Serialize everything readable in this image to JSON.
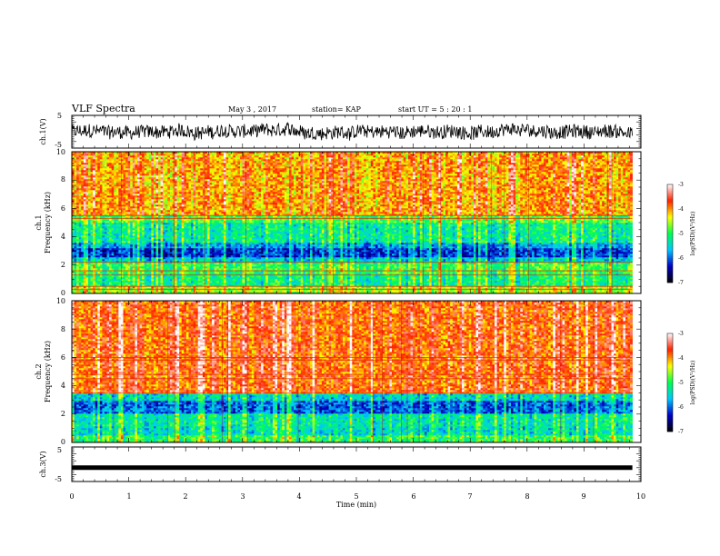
{
  "header": {
    "title": "VLF Spectra",
    "date": "May 3  , 2017",
    "station": "station= KAP",
    "start": "start  UT =   5  : 20 : 1"
  },
  "chart_data": [
    {
      "type": "line",
      "panel": "ch1-waveform",
      "ylabel": "ch.1(V)",
      "ylim": [
        -5,
        5
      ],
      "y_ticks": [
        "5",
        "-5"
      ],
      "xlim": [
        0,
        10
      ],
      "line_color": "#000000"
    },
    {
      "type": "heatmap",
      "panel": "ch1-spectrogram",
      "ylabel": "ch.1",
      "ylabel2": "Frequency (kHz)",
      "ylim": [
        0,
        10
      ],
      "y_ticks": [
        "0",
        "2",
        "4",
        "6",
        "8",
        "10"
      ],
      "xlim": [
        0,
        9.85
      ],
      "bands": [
        {
          "from": 0,
          "to": 0.5,
          "level": -4.6
        },
        {
          "from": 0.5,
          "to": 1.4,
          "level": -5.2
        },
        {
          "from": 1.4,
          "to": 2.2,
          "level": -5.0
        },
        {
          "from": 2.2,
          "to": 2.6,
          "level": -5.6
        },
        {
          "from": 2.6,
          "to": 3.2,
          "level": -6.2
        },
        {
          "from": 3.2,
          "to": 3.6,
          "level": -5.8
        },
        {
          "from": 3.6,
          "to": 5.0,
          "level": -5.3
        },
        {
          "from": 5.0,
          "to": 5.5,
          "level": -4.9
        },
        {
          "from": 5.5,
          "to": 10,
          "level": -4.1
        }
      ],
      "lines_khz": [
        0.3,
        0.5,
        1.3,
        1.6,
        2.2,
        5.3,
        5.5
      ],
      "colorbar": {
        "zlim": [
          -7,
          -3
        ],
        "z_ticks": [
          "-3",
          "-4",
          "-5",
          "-6",
          "-7"
        ],
        "label": "log(PSD)(V²/Hz)"
      }
    },
    {
      "type": "heatmap",
      "panel": "ch2-spectrogram",
      "ylabel": "ch.2",
      "ylabel2": "Frequency (kHz)",
      "ylim": [
        0,
        10
      ],
      "y_ticks": [
        "0",
        "2",
        "4",
        "6",
        "8",
        "10"
      ],
      "xlim": [
        0,
        9.85
      ],
      "bands": [
        {
          "from": 0,
          "to": 0.5,
          "level": -5.0
        },
        {
          "from": 0.5,
          "to": 1.2,
          "level": -5.4
        },
        {
          "from": 1.2,
          "to": 2.0,
          "level": -5.3
        },
        {
          "from": 2.0,
          "to": 3.0,
          "level": -6.0
        },
        {
          "from": 3.0,
          "to": 3.4,
          "level": -5.5
        },
        {
          "from": 3.4,
          "to": 10,
          "level": -3.8
        }
      ],
      "lines_khz": [
        3.5,
        4.5,
        4.8,
        5.8,
        6.0
      ],
      "colorbar": {
        "zlim": [
          -7,
          -3
        ],
        "z_ticks": [
          "-3",
          "-4",
          "-5",
          "-6",
          "-7"
        ],
        "label": "log(PSD)(V²/Hz)"
      }
    },
    {
      "type": "line",
      "panel": "ch3-waveform",
      "ylabel": "ch.3(V)",
      "ylim": [
        -5,
        5
      ],
      "y_ticks": [
        "5",
        "-5"
      ],
      "xlim": [
        0,
        10
      ],
      "xlabel": "Time  (min)",
      "x_ticks": [
        "0",
        "1",
        "2",
        "3",
        "4",
        "5",
        "6",
        "7",
        "8",
        "9",
        "10"
      ],
      "y_value": -1,
      "x_end": 9.85,
      "line_color": "#000000"
    }
  ],
  "colors": {
    "scale": [
      "#000000",
      "#0000c8",
      "#00c8ff",
      "#00ff50",
      "#ffff00",
      "#ff2000",
      "#ffffff"
    ]
  }
}
